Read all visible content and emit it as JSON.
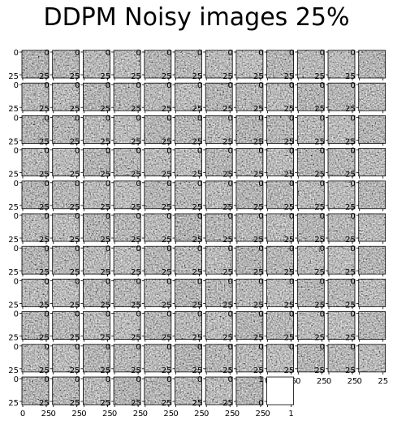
{
  "title": "DDPM Noisy images 25%",
  "figure": {
    "rows": 11,
    "cols": 12,
    "filled_last_row": 8,
    "ticks": {
      "y_top": "0",
      "y_bottom": "25",
      "x_left": "0",
      "x_right": "25"
    },
    "blank_panel_ticks": {
      "y_top": "1",
      "y_bottom": "0",
      "x_left": "0",
      "x_right": "1"
    }
  },
  "colors": {
    "background": "#ffffff",
    "frame": "#000000"
  }
}
